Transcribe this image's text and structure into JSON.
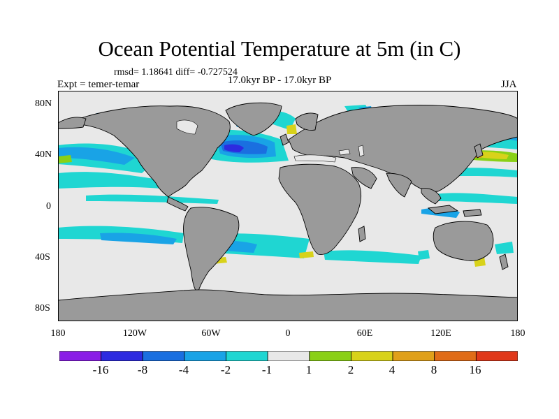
{
  "title": "Ocean Potential Temperature at 5m (in C)",
  "stats": "rmsd= 1.18641 diff= -0.727524",
  "subtitle": "17.0kyr BP - 17.0kyr BP",
  "left_label": "Expt = temer-temar",
  "right_label": "JJA",
  "lat_labels": [
    "80N",
    "40N",
    "0",
    "40S",
    "80S"
  ],
  "lon_labels": [
    "180",
    "120W",
    "60W",
    "0",
    "60E",
    "120E",
    "180"
  ],
  "colorbar": {
    "labels": [
      "-16",
      "-8",
      "-4",
      "-2",
      "-1",
      "1",
      "2",
      "4",
      "8",
      "16"
    ],
    "colors": [
      "#8a1ee6",
      "#2d2be0",
      "#1a6fe0",
      "#19a3e6",
      "#1fd6d2",
      "#e8e8e8",
      "#8ad016",
      "#d8d21a",
      "#e0a01a",
      "#e06c18",
      "#e0381a"
    ]
  },
  "map_colors": {
    "land": "#9a9a9a",
    "ocean_neutral": "#e8e8e8",
    "coast": "#000000"
  }
}
